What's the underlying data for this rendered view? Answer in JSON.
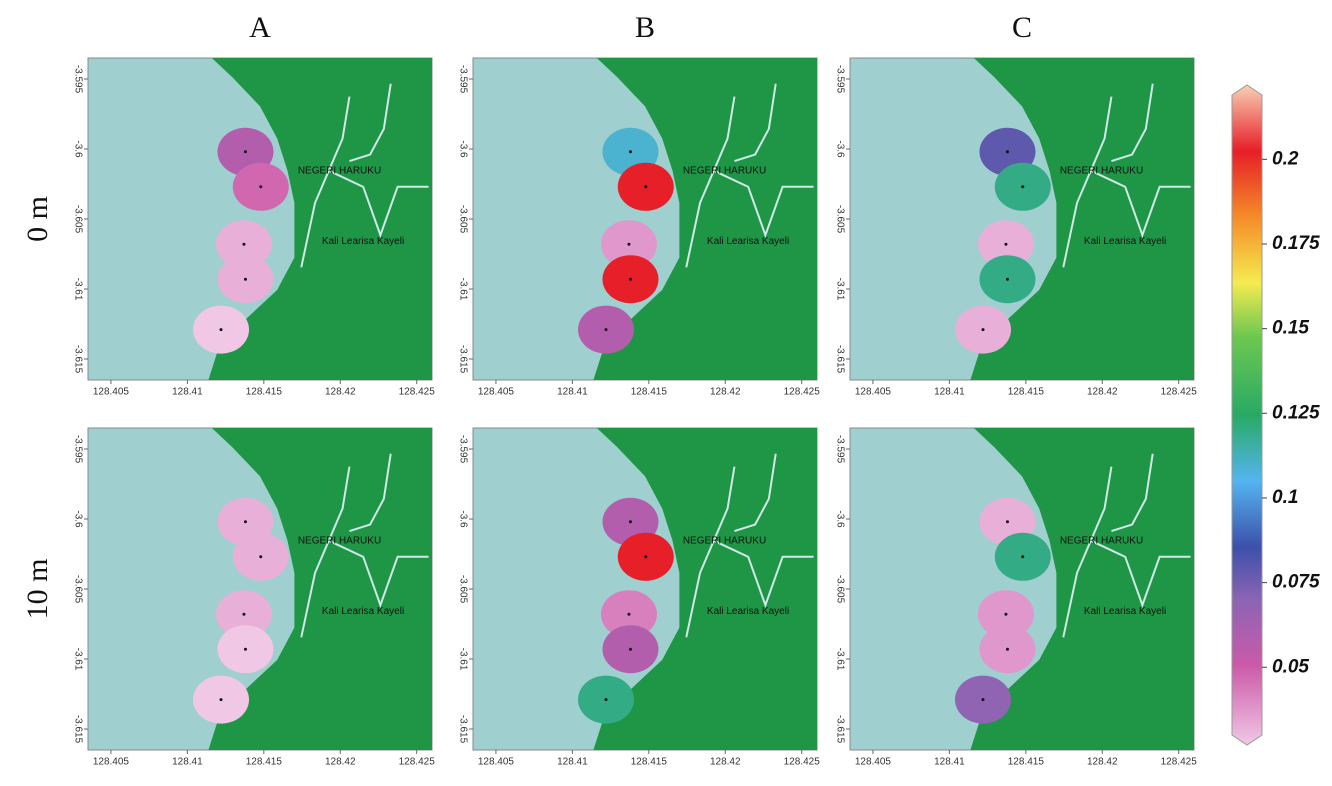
{
  "figure": {
    "columns": [
      "A",
      "B",
      "C"
    ],
    "rows": [
      "0 m",
      "10 m"
    ],
    "places": [
      "NEGERI HARUKU",
      "Kali Learisa Kayeli"
    ],
    "xlim": [
      128.4035,
      128.426
    ],
    "xticks": [
      128.405,
      128.41,
      128.415,
      128.42,
      128.425
    ],
    "ylim": [
      -3.5935,
      -3.6165
    ],
    "yticks": [
      -3.595,
      -3.6,
      -3.605,
      -3.61,
      -3.615
    ],
    "stations": {
      "lon": [
        128.4138,
        128.4148,
        128.4137,
        128.4138,
        128.4122
      ],
      "lat": [
        -3.6002,
        -3.6027,
        -3.6068,
        -3.6093,
        -3.6129
      ]
    },
    "values": [
      [
        [
          0.06,
          0.05,
          0.035,
          0.035,
          0.025
        ],
        [
          0.11,
          0.2,
          0.04,
          0.2,
          0.06
        ],
        [
          0.08,
          0.12,
          0.035,
          0.12,
          0.035
        ]
      ],
      [
        [
          0.035,
          0.035,
          0.035,
          0.03,
          0.03
        ],
        [
          0.06,
          0.2,
          0.045,
          0.06,
          0.12
        ],
        [
          0.035,
          0.12,
          0.04,
          0.04,
          0.07
        ]
      ]
    ],
    "colorbar": {
      "lim": [
        0.03,
        0.219
      ],
      "ticks": [
        0.05,
        0.075,
        0.1,
        0.125,
        0.15,
        0.175,
        0.2
      ]
    }
  }
}
